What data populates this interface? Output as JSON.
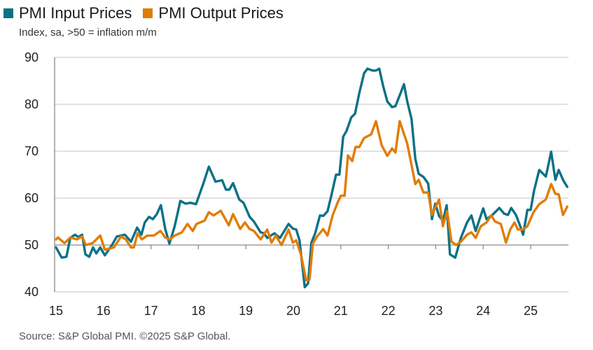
{
  "chart_data": {
    "type": "line",
    "subtitle": "Index, sa, >50 = inflation m/m",
    "source": "Source: S&P Global PMI. ©2025 S&P Global.",
    "xlabel": "",
    "ylabel": "",
    "xlim": [
      2015,
      2025.8
    ],
    "ylim": [
      40,
      90
    ],
    "yticks": [
      40,
      50,
      60,
      70,
      80,
      90
    ],
    "ytick_labels": [
      "40",
      "50",
      "60",
      "70",
      "80",
      "90"
    ],
    "xticks": [
      2015,
      2016,
      2017,
      2018,
      2019,
      2020,
      2021,
      2022,
      2023,
      2024,
      2025
    ],
    "xtick_labels": [
      "15",
      "16",
      "17",
      "18",
      "19",
      "20",
      "21",
      "22",
      "23",
      "24",
      "25"
    ],
    "grid": true,
    "legend_position": "top-left",
    "series": [
      {
        "name": "PMI Input Prices",
        "color": "#0b7187",
        "x": [
          2015.0,
          2015.12,
          2015.22,
          2015.3,
          2015.4,
          2015.47,
          2015.55,
          2015.62,
          2015.7,
          2015.78,
          2015.85,
          2015.93,
          2016.03,
          2016.18,
          2016.28,
          2016.45,
          2016.58,
          2016.71,
          2016.8,
          2016.87,
          2016.96,
          2017.04,
          2017.12,
          2017.21,
          2017.3,
          2017.39,
          2017.5,
          2017.62,
          2017.73,
          2017.83,
          2017.95,
          2018.1,
          2018.22,
          2018.36,
          2018.5,
          2018.58,
          2018.65,
          2018.73,
          2018.86,
          2018.95,
          2019.08,
          2019.17,
          2019.31,
          2019.38,
          2019.45,
          2019.6,
          2019.72,
          2019.9,
          2019.99,
          2020.06,
          2020.13,
          2020.24,
          2020.31,
          2020.38,
          2020.46,
          2020.56,
          2020.63,
          2020.72,
          2020.8,
          2020.9,
          2020.97,
          2021.05,
          2021.12,
          2021.22,
          2021.3,
          2021.39,
          2021.49,
          2021.56,
          2021.67,
          2021.74,
          2021.81,
          2021.89,
          2021.98,
          2022.08,
          2022.15,
          2022.26,
          2022.33,
          2022.4,
          2022.49,
          2022.57,
          2022.64,
          2022.74,
          2022.84,
          2022.92,
          2022.99,
          2023.07,
          2023.15,
          2023.23,
          2023.3,
          2023.41,
          2023.53,
          2023.66,
          2023.75,
          2023.84,
          2024.0,
          2024.07,
          2024.19,
          2024.34,
          2024.44,
          2024.52,
          2024.59,
          2024.69,
          2024.78,
          2024.84,
          2024.93,
          2025.0,
          2025.07,
          2025.18,
          2025.32,
          2025.43,
          2025.52,
          2025.59,
          2025.69,
          2025.77
        ],
        "values": [
          49.5,
          47.3,
          47.5,
          51.5,
          52.2,
          51.7,
          52.2,
          48.0,
          47.5,
          49.5,
          48.2,
          49.5,
          47.8,
          50.0,
          51.8,
          52.2,
          50.7,
          53.7,
          52.2,
          54.8,
          56.0,
          55.5,
          56.5,
          58.5,
          53.5,
          50.3,
          54.0,
          59.4,
          58.8,
          59.0,
          58.7,
          63.0,
          66.7,
          63.5,
          63.8,
          61.8,
          61.8,
          63.2,
          59.7,
          59.0,
          56.0,
          55.0,
          52.7,
          52.5,
          51.5,
          52.5,
          51.5,
          54.5,
          53.5,
          53.3,
          51.0,
          41.0,
          41.8,
          50.5,
          52.5,
          56.3,
          56.2,
          57.2,
          60.5,
          65.0,
          65.0,
          73.1,
          74.3,
          77.2,
          78.0,
          82.4,
          86.6,
          87.6,
          87.2,
          87.2,
          87.6,
          84.0,
          80.6,
          79.4,
          79.6,
          82.4,
          84.3,
          80.6,
          76.9,
          68.4,
          65.2,
          64.5,
          63.1,
          55.5,
          58.8,
          56.2,
          55.2,
          58.5,
          48.0,
          47.3,
          51.5,
          54.8,
          56.3,
          53.0,
          57.8,
          55.5,
          56.4,
          57.9,
          56.7,
          56.4,
          57.9,
          56.4,
          54.0,
          52.2,
          57.5,
          57.5,
          61.5,
          66.0,
          64.6,
          69.9,
          63.9,
          66.0,
          63.7,
          62.4
        ]
      },
      {
        "name": "PMI Output Prices",
        "color": "#e17c05",
        "x": [
          2015.0,
          2015.04,
          2015.18,
          2015.3,
          2015.44,
          2015.55,
          2015.63,
          2015.77,
          2015.93,
          2016.03,
          2016.15,
          2016.22,
          2016.37,
          2016.47,
          2016.58,
          2016.64,
          2016.72,
          2016.81,
          2016.92,
          2017.06,
          2017.2,
          2017.3,
          2017.4,
          2017.5,
          2017.65,
          2017.77,
          2017.88,
          2017.96,
          2018.13,
          2018.22,
          2018.32,
          2018.47,
          2018.64,
          2018.73,
          2018.88,
          2018.98,
          2019.08,
          2019.17,
          2019.31,
          2019.45,
          2019.54,
          2019.63,
          2019.75,
          2019.9,
          2019.99,
          2020.06,
          2020.16,
          2020.27,
          2020.34,
          2020.41,
          2020.5,
          2020.63,
          2020.72,
          2020.83,
          2020.93,
          2021.0,
          2021.08,
          2021.15,
          2021.24,
          2021.31,
          2021.39,
          2021.49,
          2021.64,
          2021.74,
          2021.86,
          2021.98,
          2022.08,
          2022.15,
          2022.24,
          2022.4,
          2022.57,
          2022.64,
          2022.74,
          2022.84,
          2022.92,
          2023.07,
          2023.15,
          2023.24,
          2023.33,
          2023.43,
          2023.53,
          2023.66,
          2023.75,
          2023.84,
          2023.95,
          2024.07,
          2024.17,
          2024.25,
          2024.37,
          2024.48,
          2024.57,
          2024.66,
          2024.73,
          2024.84,
          2024.93,
          2025.06,
          2025.18,
          2025.32,
          2025.43,
          2025.52,
          2025.59,
          2025.68,
          2025.77
        ],
        "values": [
          51.2,
          51.6,
          50.4,
          51.6,
          51.2,
          51.8,
          50.0,
          50.4,
          52.0,
          49.0,
          49.3,
          49.5,
          51.8,
          51.2,
          49.5,
          49.5,
          52.5,
          51.2,
          52.0,
          52.0,
          53.0,
          51.6,
          51.2,
          52.0,
          52.7,
          54.5,
          53.0,
          54.5,
          55.2,
          57.0,
          56.3,
          57.3,
          54.2,
          56.6,
          53.4,
          54.8,
          53.4,
          53.0,
          51.2,
          53.3,
          50.5,
          52.0,
          50.0,
          53.3,
          50.5,
          51.0,
          48.0,
          42.5,
          42.6,
          50.3,
          51.8,
          53.4,
          52.0,
          56.4,
          59.0,
          60.5,
          60.5,
          69.1,
          67.9,
          70.9,
          70.9,
          72.8,
          73.6,
          76.4,
          71.3,
          69.0,
          70.6,
          69.7,
          76.4,
          71.6,
          63.0,
          63.9,
          61.2,
          61.2,
          56.4,
          59.7,
          54.0,
          57.2,
          50.7,
          50.0,
          50.7,
          52.2,
          52.7,
          51.5,
          54.0,
          54.8,
          56.3,
          55.0,
          54.5,
          50.5,
          53.3,
          54.8,
          53.3,
          53.3,
          54.0,
          57.0,
          58.7,
          59.7,
          63.0,
          60.9,
          60.8,
          56.4,
          58.2
        ]
      }
    ]
  }
}
